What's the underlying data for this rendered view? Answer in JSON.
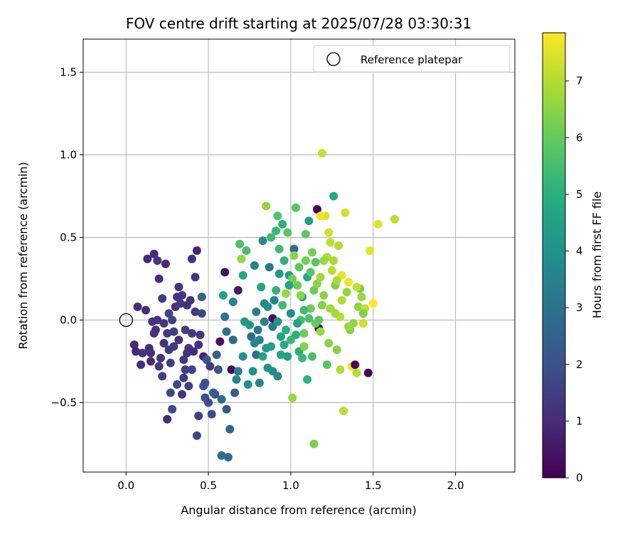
{
  "chart_data": {
    "type": "scatter",
    "title": "FOV centre drift starting at 2025/07/28 03:30:31",
    "xlabel": "Angular distance from reference (arcmin)",
    "ylabel": "Rotation from reference (arcmin)",
    "xlim": [
      -0.26,
      2.36
    ],
    "ylim": [
      -0.92,
      1.7
    ],
    "xticks": [
      0.0,
      0.5,
      1.0,
      1.5,
      2.0
    ],
    "xtick_labels": [
      "0.0",
      "0.5",
      "1.0",
      "1.5",
      "2.0"
    ],
    "yticks": [
      -0.5,
      0.0,
      0.5,
      1.0,
      1.5
    ],
    "ytick_labels": [
      "−0.5",
      "0.0",
      "0.5",
      "1.0",
      "1.5"
    ],
    "grid": true,
    "legend": {
      "position": "top-right",
      "entries": [
        "Reference platepar"
      ]
    },
    "reference_point": {
      "x": 0.0,
      "y": 0.0,
      "marker": "open-circle"
    },
    "colorbar": {
      "label": "Hours from first FF file",
      "colormap": "viridis",
      "range": [
        0,
        7.85
      ],
      "ticks": [
        0,
        1,
        2,
        3,
        4,
        5,
        6,
        7
      ],
      "tick_labels": [
        "0",
        "1",
        "2",
        "3",
        "4",
        "5",
        "6",
        "7"
      ]
    },
    "series": [
      {
        "marker": "filled-circle",
        "points": [
          [
            0.07,
            0.08,
            1.0
          ],
          [
            0.05,
            -0.15,
            1.0
          ],
          [
            0.06,
            -0.19,
            0.9
          ],
          [
            0.09,
            -0.27,
            1.1
          ],
          [
            0.12,
            0.06,
            1.0
          ],
          [
            0.13,
            0.37,
            0.9
          ],
          [
            0.15,
            -0.25,
            1.0
          ],
          [
            0.16,
            -0.01,
            1.2
          ],
          [
            0.17,
            0.4,
            1.0
          ],
          [
            0.18,
            -0.06,
            1.1
          ],
          [
            0.19,
            0.36,
            1.3
          ],
          [
            0.2,
            0.25,
            1.1
          ],
          [
            0.21,
            -0.23,
            1.2
          ],
          [
            0.22,
            -0.34,
            1.5
          ],
          [
            0.22,
            0.13,
            1.4
          ],
          [
            0.23,
            -0.02,
            1.3
          ],
          [
            0.24,
            0.34,
            1.0
          ],
          [
            0.25,
            -0.6,
            1.0
          ],
          [
            0.26,
            0.04,
            1.6
          ],
          [
            0.27,
            -0.44,
            1.7
          ],
          [
            0.28,
            -0.54,
            1.8
          ],
          [
            0.29,
            -0.16,
            1.3
          ],
          [
            0.3,
            0.08,
            1.2
          ],
          [
            0.31,
            0.14,
            1.2
          ],
          [
            0.32,
            -0.12,
            1.1
          ],
          [
            0.33,
            0.1,
            1.4
          ],
          [
            0.34,
            -0.45,
            1.2
          ],
          [
            0.35,
            -0.24,
            1.3
          ],
          [
            0.36,
            -0.06,
            1.5
          ],
          [
            0.37,
            0.09,
            1.1
          ],
          [
            0.38,
            -0.17,
            1.3
          ],
          [
            0.39,
            0.12,
            1.2
          ],
          [
            0.4,
            0.37,
            1.1
          ],
          [
            0.4,
            -0.3,
            1.6
          ],
          [
            0.41,
            -0.19,
            1.0
          ],
          [
            0.42,
            0.05,
            1.3
          ],
          [
            0.43,
            0.42,
            0.9
          ],
          [
            0.44,
            -0.58,
            1.5
          ],
          [
            0.45,
            -0.09,
            1.2
          ],
          [
            0.46,
            0.14,
            2.6
          ],
          [
            0.47,
            -0.22,
            0.8
          ],
          [
            0.48,
            -0.47,
            1.9
          ],
          [
            0.49,
            -0.24,
            2.1
          ],
          [
            0.5,
            -0.5,
            1.9
          ],
          [
            0.51,
            -0.28,
            1.4
          ],
          [
            0.43,
            -0.7,
            1.7
          ],
          [
            0.25,
            -0.08,
            1.3
          ],
          [
            0.28,
            0.0,
            1.6
          ],
          [
            0.35,
            -0.35,
            1.4
          ],
          [
            0.38,
            -0.4,
            1.6
          ],
          [
            0.52,
            -0.57,
            1.8
          ],
          [
            0.54,
            -0.45,
            1.8
          ],
          [
            0.56,
            -0.3,
            2.1
          ],
          [
            0.57,
            -0.13,
            0.4
          ],
          [
            0.58,
            -0.82,
            2.9
          ],
          [
            0.6,
            0.29,
            0.3
          ],
          [
            0.61,
            -0.54,
            2.1
          ],
          [
            0.62,
            -0.83,
            2.8
          ],
          [
            0.63,
            -0.66,
            2.7
          ],
          [
            0.64,
            -0.3,
            0.3
          ],
          [
            0.65,
            -0.12,
            2.8
          ],
          [
            0.66,
            -0.44,
            2.3
          ],
          [
            0.68,
            -0.31,
            3.4
          ],
          [
            0.68,
            0.18,
            0.6
          ],
          [
            0.69,
            0.46,
            5.6
          ],
          [
            0.7,
            0.37,
            6.6
          ],
          [
            0.71,
            0.27,
            4.8
          ],
          [
            0.72,
            -0.01,
            4.2
          ],
          [
            0.74,
            -0.39,
            3.9
          ],
          [
            0.75,
            -0.03,
            4.1
          ],
          [
            0.76,
            -0.1,
            2.9
          ],
          [
            0.77,
            -0.31,
            4.0
          ],
          [
            0.78,
            0.33,
            3.5
          ],
          [
            0.79,
            -0.21,
            3.0
          ],
          [
            0.8,
            -0.06,
            3.1
          ],
          [
            0.81,
            -0.38,
            3.5
          ],
          [
            0.82,
            0.2,
            4.6
          ],
          [
            0.83,
            0.48,
            3.8
          ],
          [
            0.84,
            0.1,
            3.8
          ],
          [
            0.85,
            0.69,
            6.6
          ],
          [
            0.86,
            -0.29,
            4.1
          ],
          [
            0.87,
            0.32,
            3.2
          ],
          [
            0.88,
            -0.16,
            4.5
          ],
          [
            0.89,
            -0.04,
            3.2
          ],
          [
            0.9,
            0.12,
            3.6
          ],
          [
            0.91,
            0.54,
            5.3
          ],
          [
            0.92,
            -0.34,
            3.6
          ],
          [
            0.93,
            0.28,
            4.2
          ],
          [
            0.94,
            -0.1,
            4.5
          ],
          [
            0.95,
            0.58,
            5.0
          ],
          [
            0.96,
            0.36,
            5.1
          ],
          [
            0.97,
            0.16,
            6.7
          ],
          [
            0.98,
            -0.22,
            4.4
          ],
          [
            0.99,
            0.27,
            4.4
          ],
          [
            1.0,
            0.04,
            3.9
          ],
          [
            1.01,
            -0.47,
            6.6
          ],
          [
            1.02,
            0.43,
            2.9
          ],
          [
            1.03,
            0.68,
            5.8
          ],
          [
            1.04,
            0.21,
            6.1
          ],
          [
            1.05,
            -0.19,
            5.0
          ],
          [
            1.06,
            0.0,
            5.5
          ],
          [
            1.07,
            0.14,
            4.5
          ],
          [
            1.08,
            -0.08,
            6.1
          ],
          [
            1.09,
            0.52,
            5.9
          ],
          [
            1.1,
            0.26,
            4.8
          ],
          [
            1.11,
            0.6,
            4.5
          ],
          [
            1.12,
            0.07,
            6.1
          ],
          [
            1.13,
            -0.22,
            5.5
          ],
          [
            1.14,
            -0.75,
            6.3
          ],
          [
            1.15,
            0.35,
            5.8
          ],
          [
            1.16,
            0.67,
            0.1
          ],
          [
            1.17,
            -0.05,
            0.4
          ],
          [
            1.18,
            0.26,
            6.8
          ],
          [
            1.19,
            1.01,
            7.2
          ],
          [
            1.2,
            0.15,
            6.5
          ],
          [
            1.21,
            0.63,
            7.5
          ],
          [
            1.22,
            -0.27,
            5.8
          ],
          [
            1.23,
            0.53,
            7.3
          ],
          [
            1.24,
            0.07,
            6.8
          ],
          [
            1.25,
            0.3,
            7.0
          ],
          [
            1.26,
            0.75,
            4.8
          ],
          [
            1.27,
            0.21,
            6.3
          ],
          [
            1.28,
            -0.18,
            6.4
          ],
          [
            1.29,
            0.45,
            7.0
          ],
          [
            1.3,
            0.02,
            7.1
          ],
          [
            1.31,
            0.27,
            7.6
          ],
          [
            1.32,
            -0.55,
            7.1
          ],
          [
            1.33,
            0.65,
            7.3
          ],
          [
            1.34,
            0.17,
            6.6
          ],
          [
            1.35,
            0.23,
            7.7
          ],
          [
            1.36,
            -0.06,
            6.4
          ],
          [
            1.37,
            -0.28,
            7.7
          ],
          [
            1.38,
            -0.02,
            6.6
          ],
          [
            1.39,
            -0.27,
            0.2
          ],
          [
            1.4,
            -0.32,
            7.0
          ],
          [
            1.41,
            0.08,
            6.5
          ],
          [
            1.42,
            0.19,
            6.2
          ],
          [
            1.43,
            0.14,
            6.7
          ],
          [
            1.44,
            -0.02,
            7.3
          ],
          [
            1.45,
            0.07,
            7.2
          ],
          [
            1.47,
            -0.32,
            0.1
          ],
          [
            1.48,
            0.42,
            7.6
          ],
          [
            1.5,
            0.1,
            7.9
          ],
          [
            1.53,
            0.58,
            7.5
          ],
          [
            1.63,
            0.61,
            7.1
          ],
          [
            1.06,
            0.15,
            6.5
          ],
          [
            0.98,
            0.53,
            5.8
          ],
          [
            1.18,
            0.63,
            7.7
          ],
          [
            1.24,
            0.47,
            7.1
          ],
          [
            1.13,
            0.41,
            6.2
          ],
          [
            0.92,
            0.63,
            5.7
          ],
          [
            0.96,
            -0.15,
            4.9
          ],
          [
            1.1,
            -0.36,
            5.1
          ],
          [
            1.02,
            0.39,
            6.5
          ],
          [
            1.08,
            -0.16,
            6.4
          ],
          [
            1.15,
            -0.02,
            6.0
          ],
          [
            0.89,
            0.01,
            0.3
          ],
          [
            1.0,
            -0.12,
            5.3
          ],
          [
            1.05,
            0.32,
            5.9
          ],
          [
            0.84,
            -0.01,
            3.6
          ],
          [
            1.22,
            0.38,
            6.9
          ],
          [
            1.26,
            0.36,
            6.9
          ],
          [
            0.78,
            -0.14,
            3.7
          ],
          [
            0.73,
            0.42,
            5.5
          ],
          [
            1.18,
            -0.07,
            6.7
          ],
          [
            0.93,
            0.43,
            5.4
          ],
          [
            1.01,
            0.25,
            6.2
          ],
          [
            0.88,
            0.5,
            5.4
          ],
          [
            1.3,
            -0.3,
            7.0
          ],
          [
            1.44,
            0.04,
            6.4
          ],
          [
            0.67,
            -0.36,
            3.5
          ],
          [
            0.6,
            0.02,
            3.1
          ],
          [
            0.58,
            -0.48,
            2.8
          ],
          [
            0.53,
            -0.44,
            2.4
          ],
          [
            0.47,
            -0.4,
            2.2
          ],
          [
            0.61,
            -0.07,
            3.0
          ],
          [
            0.55,
            -0.21,
            2.5
          ],
          [
            0.65,
            0.11,
            3.6
          ],
          [
            0.59,
            0.15,
            4.6
          ],
          [
            0.71,
            -0.22,
            3.9
          ],
          [
            0.83,
            -0.22,
            4.6
          ],
          [
            0.86,
            0.08,
            3.9
          ],
          [
            0.92,
            -0.01,
            4.1
          ],
          [
            1.04,
            -0.02,
            4.5
          ],
          [
            0.97,
            -0.06,
            5.0
          ],
          [
            0.99,
            0.21,
            4.7
          ],
          [
            1.12,
            0.29,
            5.8
          ],
          [
            1.08,
            0.06,
            5.4
          ],
          [
            1.2,
            0.36,
            6.7
          ],
          [
            1.17,
            0.0,
            5.9
          ],
          [
            0.1,
            -0.2,
            1.1
          ],
          [
            0.14,
            -0.17,
            1.0
          ],
          [
            0.17,
            -0.08,
            1.2
          ],
          [
            0.2,
            -0.28,
            1.3
          ],
          [
            0.23,
            -0.14,
            1.2
          ],
          [
            0.27,
            -0.26,
            1.4
          ],
          [
            0.29,
            -0.07,
            1.5
          ],
          [
            0.32,
            0.2,
            1.2
          ],
          [
            0.34,
            0.15,
            1.3
          ],
          [
            0.37,
            -0.2,
            1.1
          ],
          [
            0.4,
            -0.08,
            1.4
          ],
          [
            0.44,
            -0.15,
            1.2
          ],
          [
            0.46,
            0.04,
            1.7
          ],
          [
            0.48,
            -0.38,
            1.9
          ],
          [
            0.36,
            -0.3,
            1.5
          ],
          [
            0.31,
            -0.39,
            1.7
          ],
          [
            0.42,
            0.26,
            1.3
          ],
          [
            0.26,
            -0.18,
            1.4
          ],
          [
            0.19,
            0.0,
            1.2
          ],
          [
            0.15,
            -0.2,
            1.1
          ],
          [
            0.79,
            0.05,
            3.4
          ],
          [
            0.81,
            -0.12,
            3.6
          ],
          [
            0.85,
            -0.17,
            4.3
          ],
          [
            0.89,
            -0.31,
            3.9
          ],
          [
            0.94,
            -0.21,
            4.6
          ],
          [
            1.03,
            -0.09,
            5.0
          ],
          [
            1.07,
            -0.23,
            5.3
          ],
          [
            1.11,
            0.01,
            5.6
          ],
          [
            1.14,
            0.18,
            6.1
          ],
          [
            1.19,
            0.09,
            6.4
          ],
          [
            1.23,
            -0.14,
            6.5
          ],
          [
            1.27,
            0.04,
            6.8
          ],
          [
            1.31,
            0.12,
            7.0
          ],
          [
            1.35,
            -0.04,
            6.7
          ],
          [
            1.4,
            0.2,
            7.2
          ],
          [
            1.28,
            0.24,
            6.9
          ],
          [
            1.16,
            0.22,
            6.5
          ],
          [
            1.09,
            0.36,
            6.2
          ],
          [
            0.95,
            0.09,
            5.4
          ],
          [
            0.91,
            0.18,
            5.2
          ]
        ]
      }
    ]
  }
}
